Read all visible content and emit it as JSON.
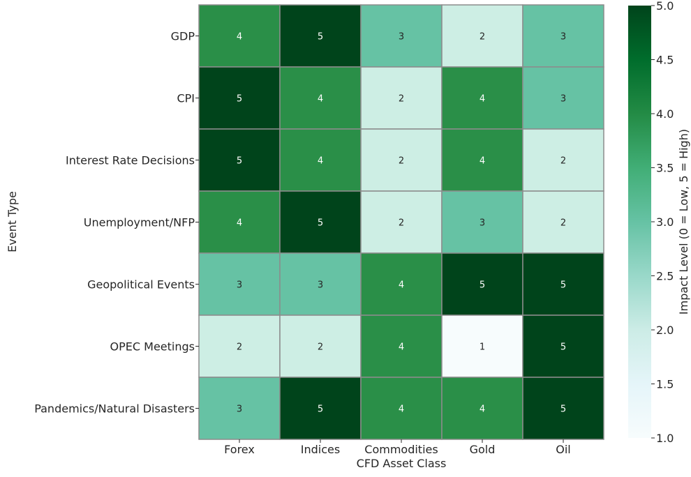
{
  "chart_data": {
    "type": "heatmap",
    "title": "",
    "xlabel": "CFD Asset Class",
    "ylabel": "Event Type",
    "x_categories": [
      "Forex",
      "Indices",
      "Commodities",
      "Gold",
      "Oil"
    ],
    "y_categories": [
      "GDP",
      "CPI",
      "Interest Rate Decisions",
      "Unemployment/NFP",
      "Geopolitical Events",
      "OPEC Meetings",
      "Pandemics/Natural Disasters"
    ],
    "values": [
      [
        4,
        5,
        3,
        2,
        3
      ],
      [
        5,
        4,
        2,
        4,
        3
      ],
      [
        5,
        4,
        2,
        4,
        2
      ],
      [
        4,
        5,
        2,
        3,
        2
      ],
      [
        3,
        3,
        4,
        5,
        5
      ],
      [
        2,
        2,
        4,
        1,
        5
      ],
      [
        3,
        5,
        4,
        4,
        5
      ]
    ],
    "annotations": true,
    "colorbar": {
      "label": "Impact Level (0 = Low, 5 = High)",
      "range": [
        1.0,
        5.0
      ],
      "ticks": [
        "1.0",
        "1.5",
        "2.0",
        "2.5",
        "3.0",
        "3.5",
        "4.0",
        "4.5",
        "5.0"
      ],
      "colormap": "BuGn"
    },
    "colors": {
      "1": "#f7fcfd",
      "2": "#cdeee4",
      "3": "#66c2a4",
      "4": "#2a8f48",
      "5": "#00441b",
      "grid_line": "#8c8c8c",
      "text_dark": "#262626",
      "text_light": "#ffffff"
    }
  }
}
